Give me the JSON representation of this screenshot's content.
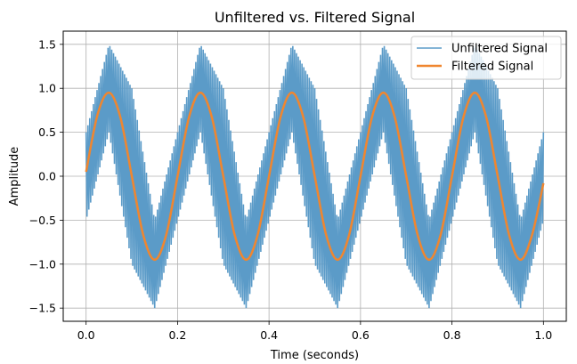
{
  "chart_data": {
    "type": "line",
    "title": "Unfiltered vs. Filtered Signal",
    "xlabel": "Time (seconds)",
    "ylabel": "Amplitude",
    "xlim": [
      -0.05,
      1.05
    ],
    "ylim": [
      -1.65,
      1.65
    ],
    "xticks": [
      0.0,
      0.2,
      0.4,
      0.6,
      0.8,
      1.0
    ],
    "xtick_labels": [
      "0.0",
      "0.2",
      "0.4",
      "0.6",
      "0.8",
      "1.0"
    ],
    "yticks": [
      -1.5,
      -1.0,
      -0.5,
      0.0,
      0.5,
      1.0,
      1.5
    ],
    "ytick_labels": [
      "−1.5",
      "−1.0",
      "−0.5",
      "0.0",
      "0.5",
      "1.0",
      "1.5"
    ],
    "grid": true,
    "legend_position": "top-right",
    "series": [
      {
        "name": "Unfiltered Signal",
        "color": "#5b9bc8",
        "description_points": {
          "t": [
            0.0,
            0.05,
            0.1,
            0.15,
            0.2,
            0.25,
            0.3,
            0.35,
            0.4,
            0.45,
            0.5,
            0.55,
            0.6,
            0.65,
            0.7,
            0.75,
            0.8,
            0.85,
            0.9,
            0.95,
            1.0
          ],
          "upper": [
            0.5,
            1.5,
            1.0,
            -0.5,
            0.5,
            1.5,
            1.0,
            -0.5,
            0.5,
            1.5,
            1.0,
            -0.5,
            0.5,
            1.5,
            1.0,
            -0.5,
            0.5,
            1.5,
            1.0,
            -0.5,
            0.5
          ],
          "lower": [
            -0.5,
            0.5,
            -1.0,
            -1.5,
            -0.5,
            0.5,
            -1.0,
            -1.5,
            -0.5,
            0.5,
            -1.0,
            -1.5,
            -0.5,
            0.5,
            -1.0,
            -1.5,
            -0.5,
            0.5,
            -1.0,
            -1.5,
            -0.5
          ]
        }
      },
      {
        "name": "Filtered Signal",
        "color": "#f0862f",
        "t": [
          0.0,
          0.025,
          0.05,
          0.075,
          0.1,
          0.125,
          0.15,
          0.175,
          0.2,
          0.225,
          0.25,
          0.275,
          0.3,
          0.325,
          0.35,
          0.375,
          0.4,
          0.425,
          0.45,
          0.475,
          0.5,
          0.525,
          0.55,
          0.575,
          0.6,
          0.625,
          0.65,
          0.675,
          0.7,
          0.725,
          0.75,
          0.775,
          0.8,
          0.825,
          0.85,
          0.875,
          0.9,
          0.925,
          0.95,
          0.975,
          1.0
        ],
        "values": [
          0.05,
          0.7,
          0.95,
          0.67,
          0.0,
          -0.67,
          -0.95,
          -0.67,
          0.0,
          0.67,
          0.95,
          0.67,
          0.0,
          -0.67,
          -0.95,
          -0.67,
          0.0,
          0.67,
          0.95,
          0.67,
          0.0,
          -0.67,
          -0.95,
          -0.67,
          0.0,
          0.67,
          0.95,
          0.67,
          0.0,
          -0.67,
          -0.95,
          -0.67,
          0.0,
          0.67,
          0.95,
          0.67,
          0.0,
          -0.67,
          -0.95,
          -0.67,
          -0.08
        ]
      }
    ]
  }
}
